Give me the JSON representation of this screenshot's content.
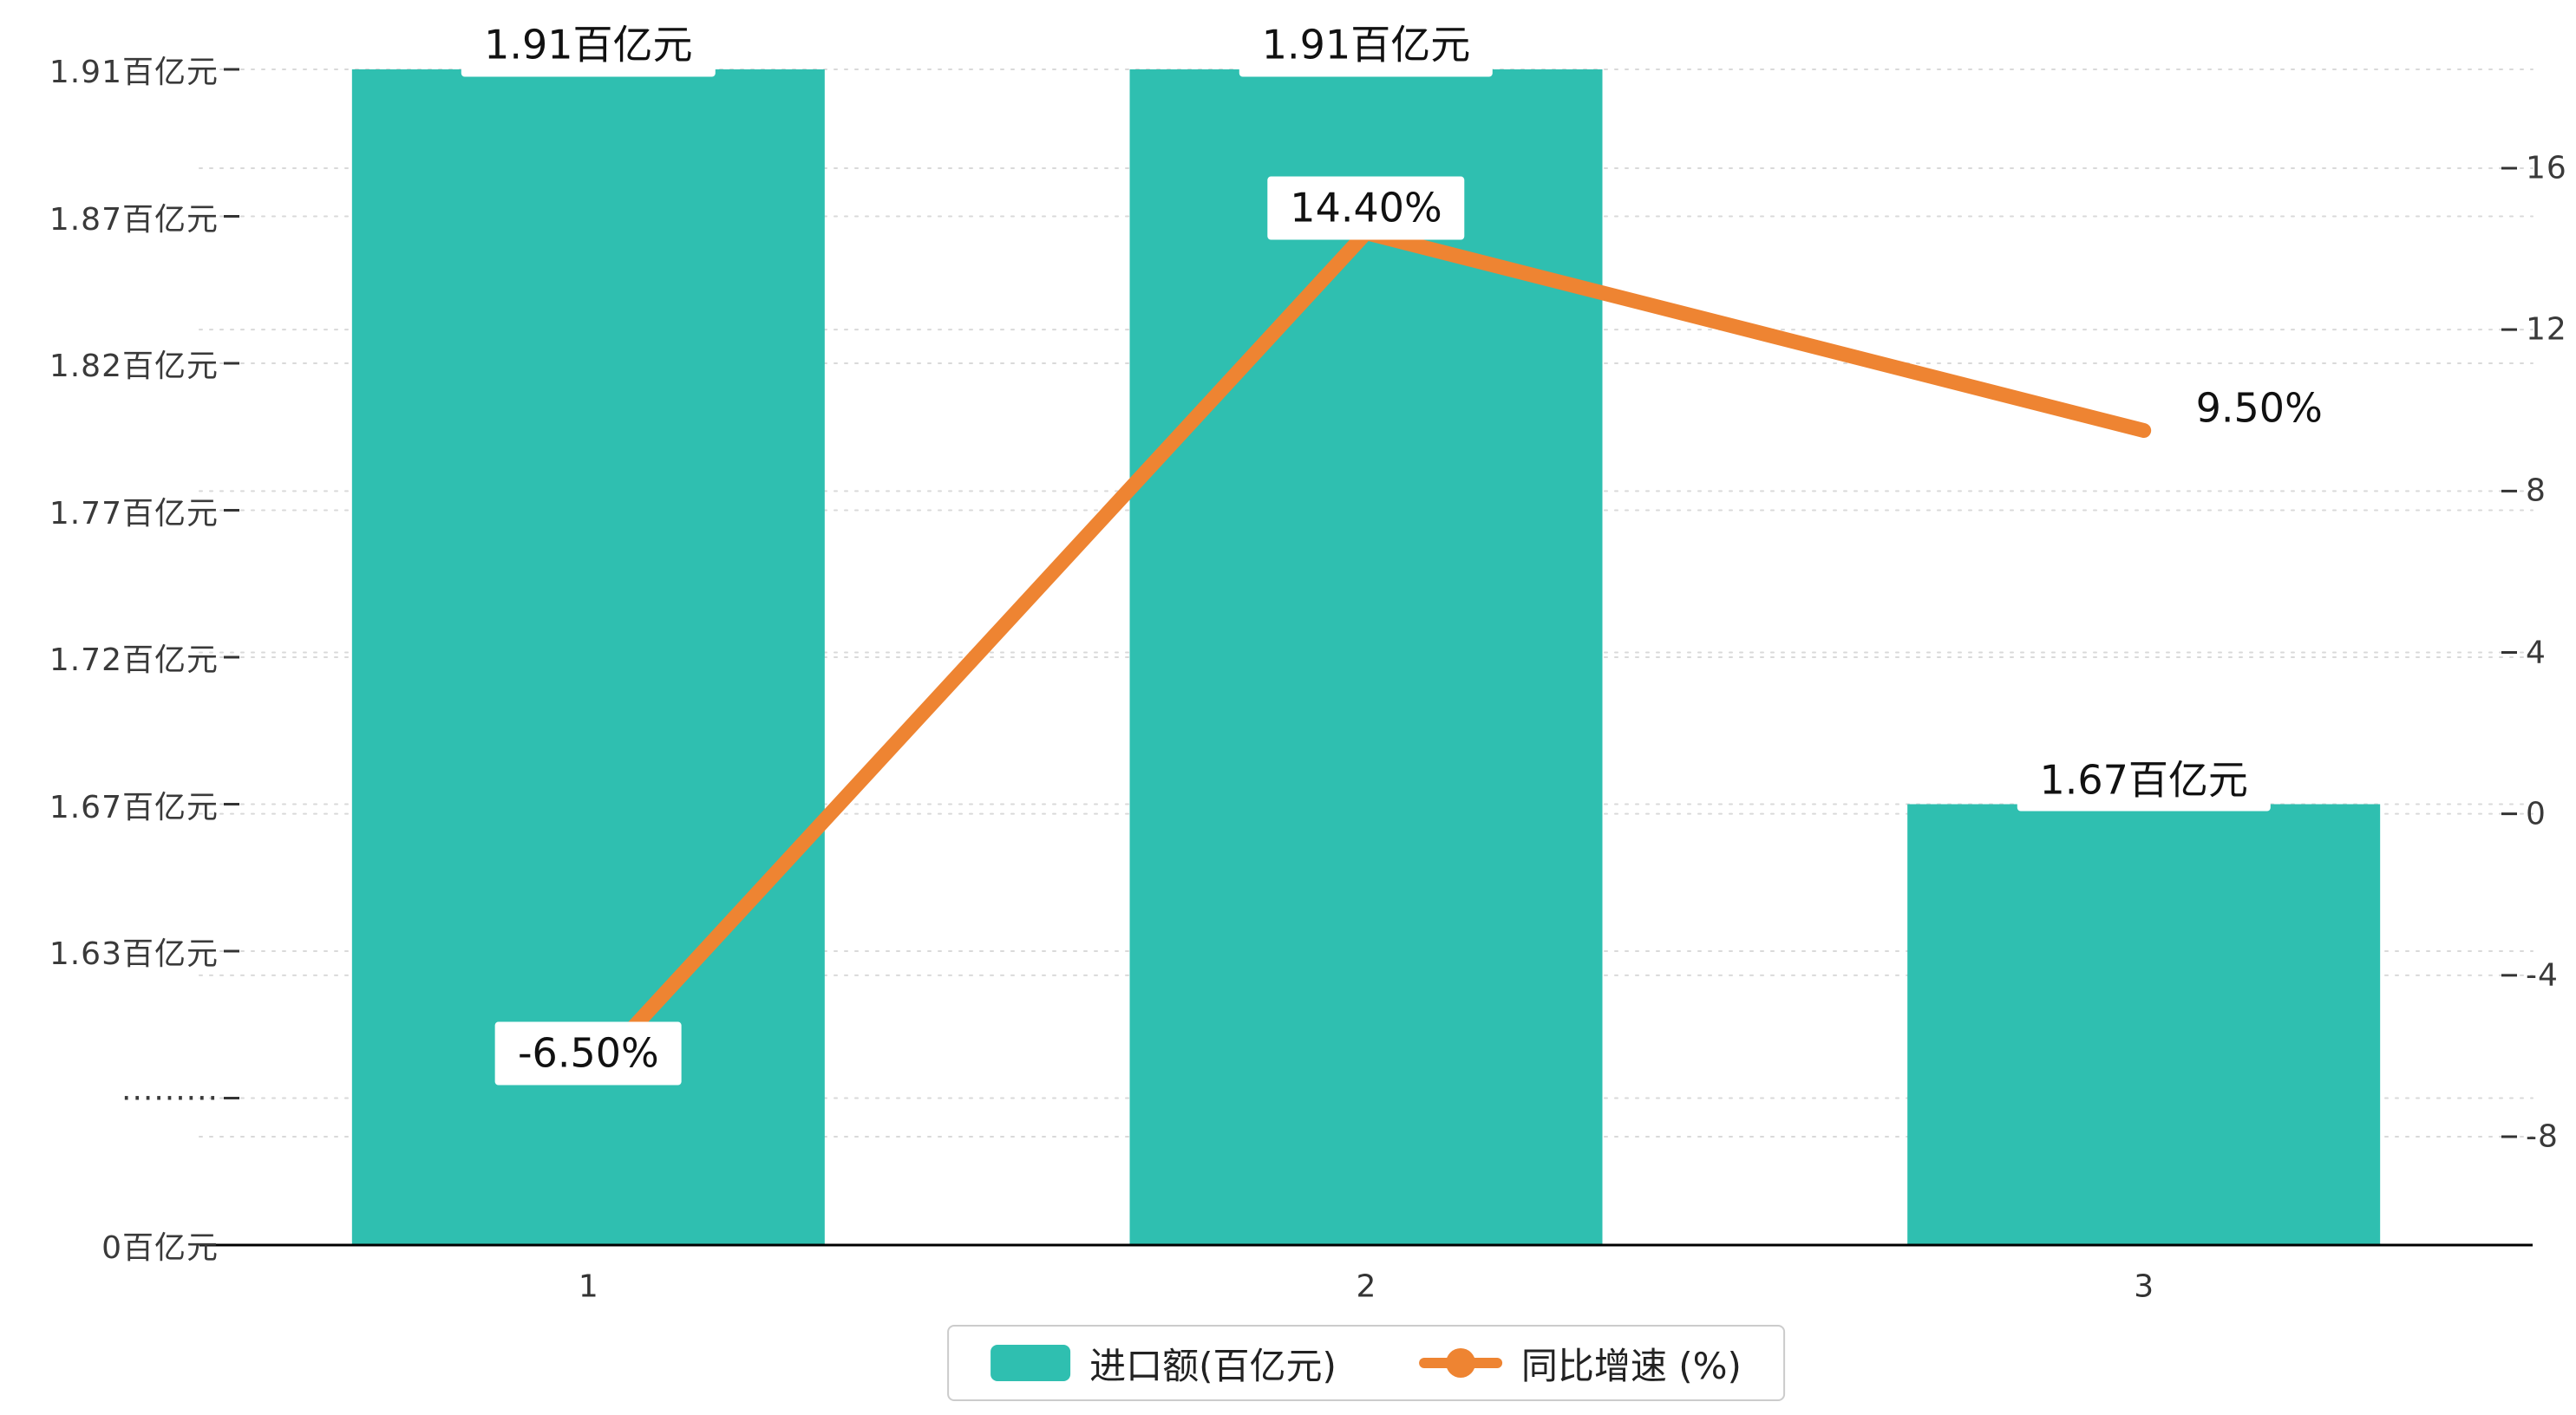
{
  "chart_data": {
    "type": "combo",
    "categories": [
      "1",
      "2",
      "3"
    ],
    "series": [
      {
        "name": "进口额(百亿元)",
        "type": "bar",
        "axis": "left",
        "values": [
          1.91,
          1.91,
          1.67
        ],
        "labels": [
          "1.91百亿元",
          "1.91百亿元",
          "1.67百亿元"
        ],
        "color": "#2fbfb0"
      },
      {
        "name": "同比增速 (%)",
        "type": "line",
        "axis": "right",
        "values": [
          -6.5,
          14.4,
          9.5
        ],
        "labels": [
          "-6.50%",
          "14.40%",
          "9.50%"
        ],
        "color": "#ee8432"
      }
    ],
    "left_axis": {
      "tick_labels": [
        "1.91百亿元",
        "1.87百亿元",
        "1.82百亿元",
        "1.77百亿元",
        "1.72百亿元",
        "1.67百亿元",
        "1.63百亿元",
        "·········",
        "0百亿元"
      ],
      "tick_values": [
        1.91,
        1.87,
        1.82,
        1.77,
        1.72,
        1.67,
        1.63
      ],
      "broken_axis": true
    },
    "right_axis": {
      "ticks": [
        16,
        12,
        8,
        4,
        0,
        -4,
        -8
      ]
    },
    "legend": [
      "进口额(百亿元)",
      "同比增速 (%)"
    ],
    "grid": "dashed"
  }
}
